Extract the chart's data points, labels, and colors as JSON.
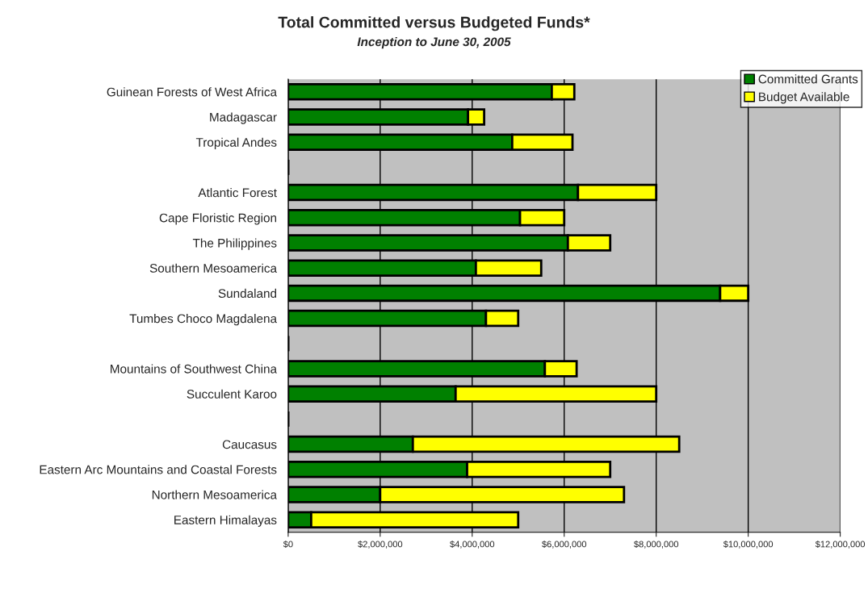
{
  "chart_data": {
    "type": "bar",
    "orientation": "horizontal",
    "stacked": true,
    "title": "Total Committed versus Budgeted Funds*",
    "subtitle": "Inception to June 30, 2005",
    "categories": [
      "Guinean Forests of West Africa",
      "Madagascar",
      "Tropical Andes",
      null,
      "Atlantic Forest",
      "Cape Floristic Region",
      "The Philippines",
      "Southern Mesoamerica",
      "Sundaland",
      "Tumbes Choco Magdalena",
      null,
      "Mountains of Southwest China",
      "Succulent Karoo",
      null,
      "Caucasus",
      "Eastern Arc Mountains and Coastal Forests",
      "Northern Mesoamerica",
      "Eastern Himalayas"
    ],
    "series": [
      {
        "name": "Committed Grants",
        "color": "#008000",
        "values": [
          5730000,
          3910000,
          4870000,
          null,
          6300000,
          5040000,
          6080000,
          4080000,
          9390000,
          4300000,
          null,
          5580000,
          3640000,
          null,
          2710000,
          3890000,
          2000000,
          500000
        ]
      },
      {
        "name": "Budget Available",
        "color": "#ffff00",
        "values": [
          490000,
          350000,
          1310000,
          null,
          1700000,
          960000,
          920000,
          1420000,
          610000,
          700000,
          null,
          690000,
          4360000,
          null,
          5790000,
          3110000,
          5300000,
          4500000
        ]
      }
    ],
    "xlim": [
      0,
      12000000
    ],
    "xticks": [
      {
        "value": 0,
        "label": "$0"
      },
      {
        "value": 2000000,
        "label": "$2,000,000"
      },
      {
        "value": 4000000,
        "label": "$4,000,000"
      },
      {
        "value": 6000000,
        "label": "$6,000,000"
      },
      {
        "value": 8000000,
        "label": "$8,000,000"
      },
      {
        "value": 10000000,
        "label": "$10,000,000"
      },
      {
        "value": 12000000,
        "label": "$12,000,000"
      }
    ],
    "grid": "x",
    "legend": "top right"
  }
}
